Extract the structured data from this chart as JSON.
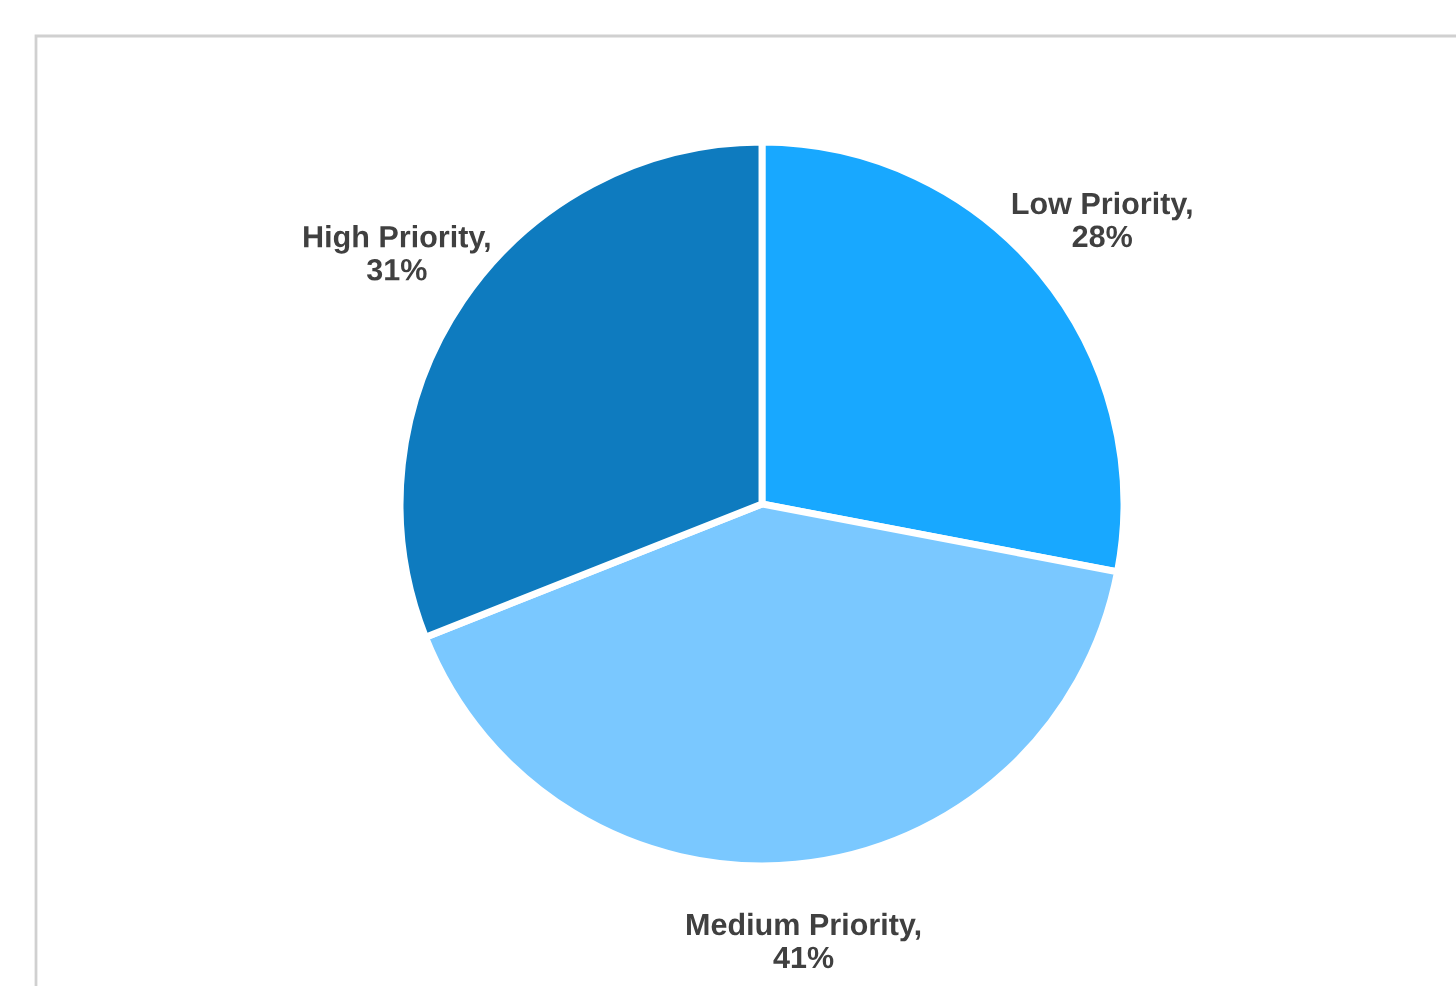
{
  "chart_data": {
    "type": "pie",
    "categories": [
      "Low Priority",
      "Medium Priority",
      "High Priority"
    ],
    "values": [
      28,
      41,
      31
    ],
    "value_labels": [
      ", 28%",
      ", 41%",
      ", 31%"
    ],
    "colors": [
      "#18a8ff",
      "#7ac8ff",
      "#0e7bbf"
    ],
    "legend": false
  }
}
